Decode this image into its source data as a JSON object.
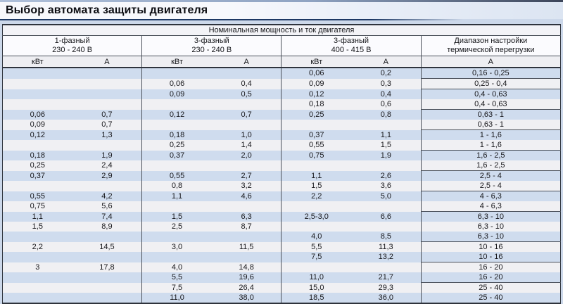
{
  "page_title": "Выбор автомата защиты двигателя",
  "colors": {
    "page_background": "#ccd8ea",
    "stripe_blue": "#cfdcee",
    "stripe_gray": "#f0f0f3",
    "border_dark": "#2e333c",
    "accent_navy": "#1d3864"
  },
  "table": {
    "span_header": "Номинальная мощность и ток двигателя",
    "groups": [
      {
        "line1": "1-фазный",
        "line2": "230 - 240 В"
      },
      {
        "line1": "3-фазный",
        "line2": "230 - 240 В"
      },
      {
        "line1": "3-фазный",
        "line2": "400 - 415 В"
      },
      {
        "line1": "Диапазон настройки",
        "line2": "термической перегрузки"
      }
    ],
    "unit_headers": [
      "кВт",
      "А",
      "кВт",
      "А",
      "кВт",
      "А",
      "А"
    ],
    "rows": [
      {
        "cells": [
          "",
          "",
          "",
          "",
          "0,06",
          "0,2",
          "0,16 - 0,25"
        ],
        "sep": true
      },
      {
        "cells": [
          "",
          "",
          "0,06",
          "0,4",
          "0,09",
          "0,3",
          "0,25 - 0,4"
        ],
        "sep": true
      },
      {
        "cells": [
          "",
          "",
          "0,09",
          "0,5",
          "0,12",
          "0,4",
          "0,4 - 0,63"
        ],
        "sep": false
      },
      {
        "cells": [
          "",
          "",
          "",
          "",
          "0,18",
          "0,6",
          "0,4 - 0,63"
        ],
        "sep": true
      },
      {
        "cells": [
          "0,06",
          "0,7",
          "0,12",
          "0,7",
          "0,25",
          "0,8",
          "0,63 - 1"
        ],
        "sep": false
      },
      {
        "cells": [
          "0,09",
          "0,7",
          "",
          "",
          "",
          "",
          "0,63 - 1"
        ],
        "sep": true
      },
      {
        "cells": [
          "0,12",
          "1,3",
          "0,18",
          "1,0",
          "0,37",
          "1,1",
          "1 - 1,6"
        ],
        "sep": false
      },
      {
        "cells": [
          "",
          "",
          "0,25",
          "1,4",
          "0,55",
          "1,5",
          "1 - 1,6"
        ],
        "sep": true
      },
      {
        "cells": [
          "0,18",
          "1,9",
          "0,37",
          "2,0",
          "0,75",
          "1,9",
          "1,6 - 2,5"
        ],
        "sep": false
      },
      {
        "cells": [
          "0,25",
          "2,4",
          "",
          "",
          "",
          "",
          "1,6 - 2,5"
        ],
        "sep": true
      },
      {
        "cells": [
          "0,37",
          "2,9",
          "0,55",
          "2,7",
          "1,1",
          "2,6",
          "2,5 - 4"
        ],
        "sep": false
      },
      {
        "cells": [
          "",
          "",
          "0,8",
          "3,2",
          "1,5",
          "3,6",
          "2,5 - 4"
        ],
        "sep": true
      },
      {
        "cells": [
          "0,55",
          "4,2",
          "1,1",
          "4,6",
          "2,2",
          "5,0",
          "4 - 6,3"
        ],
        "sep": false
      },
      {
        "cells": [
          "0,75",
          "5,6",
          "",
          "",
          "",
          "",
          "4 - 6,3"
        ],
        "sep": true
      },
      {
        "cells": [
          "1,1",
          "7,4",
          "1,5",
          "6,3",
          "2,5-3,0",
          "6,6",
          "6,3 - 10"
        ],
        "sep": false
      },
      {
        "cells": [
          "1,5",
          "8,9",
          "2,5",
          "8,7",
          "",
          "",
          "6,3 - 10"
        ],
        "sep": false
      },
      {
        "cells": [
          "",
          "",
          "",
          "",
          "4,0",
          "8,5",
          "6,3 - 10"
        ],
        "sep": true
      },
      {
        "cells": [
          "2,2",
          "14,5",
          "3,0",
          "11,5",
          "5,5",
          "11,3",
          "10 - 16"
        ],
        "sep": false
      },
      {
        "cells": [
          "",
          "",
          "",
          "",
          "7,5",
          "13,2",
          "10 - 16"
        ],
        "sep": true
      },
      {
        "cells": [
          "3",
          "17,8",
          "4,0",
          "14,8",
          "",
          "",
          "16 - 20"
        ],
        "sep": false
      },
      {
        "cells": [
          "",
          "",
          "5,5",
          "19,6",
          "11,0",
          "21,7",
          "16 - 20"
        ],
        "sep": true
      },
      {
        "cells": [
          "",
          "",
          "7,5",
          "26,4",
          "15,0",
          "29,3",
          "25 - 40"
        ],
        "sep": false
      },
      {
        "cells": [
          "",
          "",
          "11,0",
          "38,0",
          "18,5",
          "36,0",
          "25 - 40"
        ],
        "sep": false
      }
    ]
  }
}
